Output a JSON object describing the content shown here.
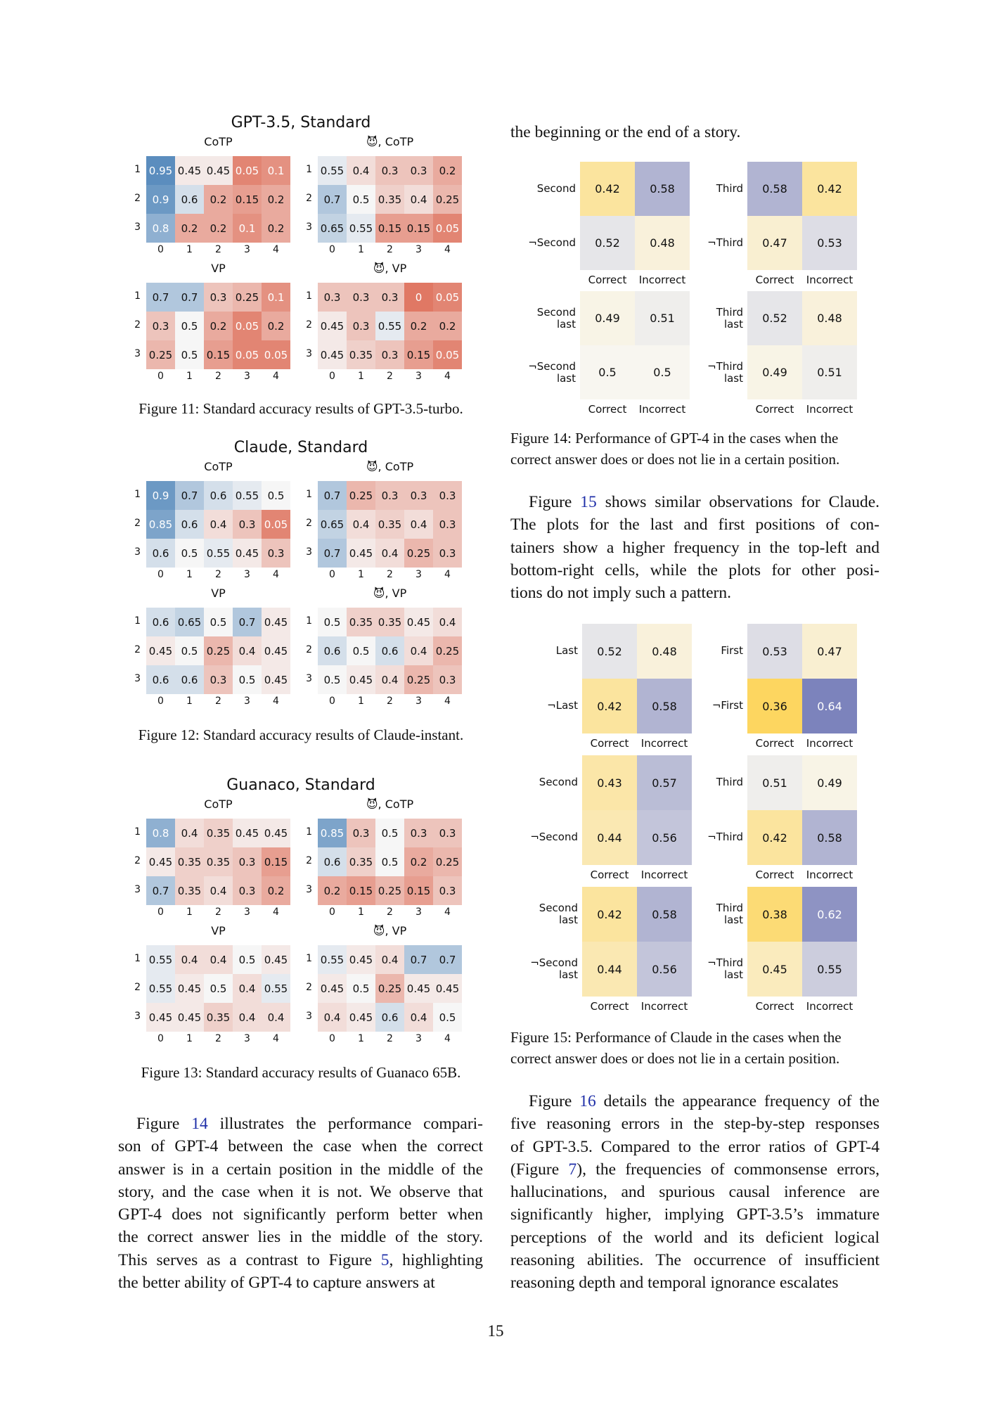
{
  "heatmap_figures": [
    {
      "title": "GPT-3.5, Standard",
      "caption": "Figure 11: Standard accuracy results of GPT-3.5-turbo.",
      "panels": [
        {
          "label": "CoTP",
          "rows": [
            [
              "0.95",
              "0.45",
              "0.45",
              "0.05",
              "0.1"
            ],
            [
              "0.9",
              "0.6",
              "0.2",
              "0.15",
              "0.2"
            ],
            [
              "0.8",
              "0.2",
              "0.2",
              "0.1",
              "0.2"
            ]
          ]
        },
        {
          "label": "😈, CoTP",
          "rows": [
            [
              "0.55",
              "0.4",
              "0.3",
              "0.3",
              "0.2"
            ],
            [
              "0.7",
              "0.5",
              "0.35",
              "0.4",
              "0.25"
            ],
            [
              "0.65",
              "0.55",
              "0.15",
              "0.15",
              "0.05"
            ]
          ]
        },
        {
          "label": "VP",
          "rows": [
            [
              "0.7",
              "0.7",
              "0.3",
              "0.25",
              "0.1"
            ],
            [
              "0.3",
              "0.5",
              "0.2",
              "0.05",
              "0.2"
            ],
            [
              "0.25",
              "0.5",
              "0.15",
              "0.05",
              "0.05"
            ]
          ]
        },
        {
          "label": "😈, VP",
          "rows": [
            [
              "0.3",
              "0.3",
              "0.3",
              "0",
              "0.05"
            ],
            [
              "0.45",
              "0.3",
              "0.55",
              "0.2",
              "0.2"
            ],
            [
              "0.45",
              "0.35",
              "0.3",
              "0.15",
              "0.05"
            ]
          ]
        }
      ]
    },
    {
      "title": "Claude, Standard",
      "caption": "Figure 12: Standard accuracy results of Claude-instant.",
      "panels": [
        {
          "label": "CoTP",
          "rows": [
            [
              "0.9",
              "0.7",
              "0.6",
              "0.55",
              "0.5"
            ],
            [
              "0.85",
              "0.6",
              "0.4",
              "0.3",
              "0.05"
            ],
            [
              "0.6",
              "0.5",
              "0.55",
              "0.45",
              "0.3"
            ]
          ]
        },
        {
          "label": "😈, CoTP",
          "rows": [
            [
              "0.7",
              "0.25",
              "0.3",
              "0.3",
              "0.3"
            ],
            [
              "0.65",
              "0.4",
              "0.35",
              "0.4",
              "0.3"
            ],
            [
              "0.7",
              "0.45",
              "0.4",
              "0.25",
              "0.3"
            ]
          ]
        },
        {
          "label": "VP",
          "rows": [
            [
              "0.6",
              "0.65",
              "0.5",
              "0.7",
              "0.45"
            ],
            [
              "0.45",
              "0.5",
              "0.25",
              "0.4",
              "0.45"
            ],
            [
              "0.6",
              "0.6",
              "0.3",
              "0.5",
              "0.45"
            ]
          ]
        },
        {
          "label": "😈, VP",
          "rows": [
            [
              "0.5",
              "0.35",
              "0.35",
              "0.45",
              "0.4"
            ],
            [
              "0.6",
              "0.5",
              "0.6",
              "0.4",
              "0.25"
            ],
            [
              "0.5",
              "0.45",
              "0.4",
              "0.25",
              "0.3"
            ]
          ]
        }
      ]
    },
    {
      "title": "Guanaco, Standard",
      "caption": "Figure 13: Standard accuracy results of Guanaco 65B.",
      "panels": [
        {
          "label": "CoTP",
          "rows": [
            [
              "0.8",
              "0.4",
              "0.35",
              "0.45",
              "0.45"
            ],
            [
              "0.45",
              "0.35",
              "0.35",
              "0.3",
              "0.15"
            ],
            [
              "0.7",
              "0.35",
              "0.4",
              "0.3",
              "0.2"
            ]
          ]
        },
        {
          "label": "😈, CoTP",
          "rows": [
            [
              "0.85",
              "0.3",
              "0.5",
              "0.3",
              "0.3"
            ],
            [
              "0.6",
              "0.35",
              "0.5",
              "0.2",
              "0.25"
            ],
            [
              "0.2",
              "0.15",
              "0.25",
              "0.15",
              "0.3"
            ]
          ]
        },
        {
          "label": "VP",
          "rows": [
            [
              "0.55",
              "0.4",
              "0.4",
              "0.5",
              "0.45"
            ],
            [
              "0.55",
              "0.45",
              "0.5",
              "0.4",
              "0.55"
            ],
            [
              "0.45",
              "0.45",
              "0.35",
              "0.4",
              "0.4"
            ]
          ]
        },
        {
          "label": "😈, VP",
          "rows": [
            [
              "0.55",
              "0.45",
              "0.4",
              "0.7",
              "0.7"
            ],
            [
              "0.45",
              "0.5",
              "0.25",
              "0.45",
              "0.45"
            ],
            [
              "0.4",
              "0.45",
              "0.6",
              "0.4",
              "0.5"
            ]
          ]
        }
      ]
    }
  ],
  "row_ticks": [
    "1",
    "2",
    "3"
  ],
  "col_ticks": [
    "0",
    "1",
    "2",
    "3",
    "4"
  ],
  "pos_col_labels": [
    "Correct",
    "Incorrect"
  ],
  "fig14": {
    "caption": "Figure 14: Performance of GPT-4 in the cases when the correct answer does or does not lie in a certain position.",
    "mats": [
      {
        "rows": [
          "Second",
          "¬Second"
        ],
        "values": [
          [
            "0.42",
            "0.58"
          ],
          [
            "0.52",
            "0.48"
          ]
        ]
      },
      {
        "rows": [
          "Third",
          "¬Third"
        ],
        "values": [
          [
            "0.58",
            "0.42"
          ],
          [
            "0.47",
            "0.53"
          ]
        ]
      },
      {
        "rows": [
          "Second last",
          "¬Second last"
        ],
        "values": [
          [
            "0.49",
            "0.51"
          ],
          [
            "0.5",
            "0.5"
          ]
        ]
      },
      {
        "rows": [
          "Third last",
          "¬Third last"
        ],
        "values": [
          [
            "0.52",
            "0.48"
          ],
          [
            "0.49",
            "0.51"
          ]
        ]
      }
    ]
  },
  "fig15": {
    "caption": "Figure 15: Performance of Claude in the cases when the correct answer does or does not lie in a certain position.",
    "mats": [
      {
        "rows": [
          "Last",
          "¬Last"
        ],
        "values": [
          [
            "0.52",
            "0.48"
          ],
          [
            "0.42",
            "0.58"
          ]
        ]
      },
      {
        "rows": [
          "First",
          "¬First"
        ],
        "values": [
          [
            "0.53",
            "0.47"
          ],
          [
            "0.36",
            "0.64"
          ]
        ]
      },
      {
        "rows": [
          "Second",
          "¬Second"
        ],
        "values": [
          [
            "0.43",
            "0.57"
          ],
          [
            "0.44",
            "0.56"
          ]
        ]
      },
      {
        "rows": [
          "Third",
          "¬Third"
        ],
        "values": [
          [
            "0.51",
            "0.49"
          ],
          [
            "0.42",
            "0.58"
          ]
        ]
      },
      {
        "rows": [
          "Second last",
          "¬Second last"
        ],
        "values": [
          [
            "0.42",
            "0.58"
          ],
          [
            "0.44",
            "0.56"
          ]
        ]
      },
      {
        "rows": [
          "Third last",
          "¬Third last"
        ],
        "values": [
          [
            "0.38",
            "0.62"
          ],
          [
            "0.45",
            "0.55"
          ]
        ]
      }
    ]
  },
  "text": {
    "right_top": "the beginning or the end of a story.",
    "left_para": [
      "Figure 14 illustrates the performance compari-",
      "son of GPT-4 between the case when the correct",
      "answer is in a certain position in the middle of the",
      "story, and the case when it is not. We observe that",
      "GPT-4 does not significantly perform better when",
      "the correct answer lies in the middle of the story.",
      "This serves as a contrast to Figure 5, highlighting",
      "the better ability of GPT-4 to capture answers at"
    ],
    "right_para1": [
      "Figure 15 shows similar observations for Claude.",
      "The plots for the last and first positions of con-",
      "tainers show a higher frequency in the top-left and",
      "bottom-right cells, while the plots for other posi-",
      "tions do not imply such a pattern."
    ],
    "right_para2": [
      "Figure 16 details the appearance frequency of the",
      "five reasoning errors in the step-by-step responses",
      "of GPT-3.5. Compared to the error ratios of GPT-4",
      "(Figure 7), the frequencies of commonsense errors,",
      "hallucinations, and spurious causal inference are",
      "significantly higher, implying GPT-3.5’s immature",
      "perceptions of the world and its deficient logical",
      "reasoning abilities. The occurrence of insufficient",
      "reasoning depth and temporal ignorance escalates"
    ],
    "page_number": "15"
  },
  "chart_data": [
    {
      "type": "heatmap",
      "title": "GPT-3.5, Standard"
    },
    {
      "type": "heatmap",
      "title": "Claude, Standard"
    },
    {
      "type": "heatmap",
      "title": "Guanaco, Standard"
    },
    {
      "type": "heatmap",
      "title": "Figure 14"
    },
    {
      "type": "heatmap",
      "title": "Figure 15"
    }
  ]
}
